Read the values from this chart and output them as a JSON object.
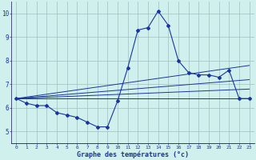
{
  "xlabel": "Graphe des températures (°c)",
  "background_color": "#cff0ec",
  "line_color": "#1a35a0",
  "grid_color": "#9fbfbf",
  "hours": [
    0,
    1,
    2,
    3,
    4,
    5,
    6,
    7,
    8,
    9,
    10,
    11,
    12,
    13,
    14,
    15,
    16,
    17,
    18,
    19,
    20,
    21,
    22,
    23
  ],
  "temp_curve": [
    6.4,
    6.2,
    6.1,
    6.1,
    5.8,
    5.7,
    5.6,
    5.4,
    5.2,
    5.2,
    6.3,
    7.7,
    9.3,
    9.4,
    10.1,
    9.5,
    8.0,
    7.5,
    7.4,
    7.4,
    7.3,
    7.6,
    6.4,
    6.4
  ],
  "fan_lines": [
    {
      "x0": 0,
      "y0": 6.4,
      "x1": 23,
      "y1": 6.4
    },
    {
      "x0": 0,
      "y0": 6.4,
      "x1": 23,
      "y1": 6.8
    },
    {
      "x0": 0,
      "y0": 6.4,
      "x1": 23,
      "y1": 7.2
    },
    {
      "x0": 0,
      "y0": 6.4,
      "x1": 23,
      "y1": 7.8
    }
  ],
  "ylim": [
    4.5,
    10.5
  ],
  "xlim": [
    -0.5,
    23.5
  ],
  "yticks": [
    5,
    6,
    7,
    8,
    9,
    10
  ],
  "xticks": [
    0,
    1,
    2,
    3,
    4,
    5,
    6,
    7,
    8,
    9,
    10,
    11,
    12,
    13,
    14,
    15,
    16,
    17,
    18,
    19,
    20,
    21,
    22,
    23
  ]
}
